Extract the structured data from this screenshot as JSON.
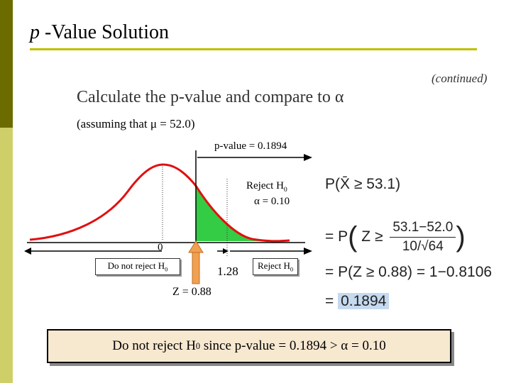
{
  "slide": {
    "title_italic": "p",
    "title_rest": " -Value Solution",
    "continued": "(continued)",
    "calc_text": "Calculate the p-value and compare to α",
    "assume_text": "(assuming that μ = 52.0)"
  },
  "figure": {
    "pvalue_label": "p-value = 0.1894",
    "reject_label": "Reject H",
    "reject_sub": "0",
    "alpha_label": "α = 0.10",
    "zero_label": "0",
    "do_not_reject_label": "Do not reject H",
    "do_not_reject_sub": "0",
    "reject_box_label": "Reject H",
    "reject_box_sub": "0",
    "critical_value": "1.28",
    "z_label": "Z = 0.88"
  },
  "formula": {
    "line1": "P(X̄ ≥ 53.1)",
    "line2_prefix": "= P",
    "line2_z": "Z ≥",
    "line2_num": "53.1−52.0",
    "line2_den": "10/√64",
    "line3": "= P(Z ≥ 0.88) = 1−0.8106",
    "line4_eq": "=",
    "line4_val": "0.1894"
  },
  "conclusion": {
    "text1": "Do not reject H",
    "sub": "0",
    "text2": " since p-value = 0.1894 > α = 0.10"
  },
  "colors": {
    "curve": "#e01010",
    "shade": "#33cc44",
    "arrow": "#f0a050",
    "accent_rule": "#c0bf00"
  }
}
